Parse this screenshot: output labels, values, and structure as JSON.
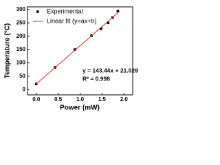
{
  "chart_data": {
    "type": "scatter",
    "xlabel": "Power (mW)",
    "ylabel": "Temperature (°C)",
    "series": [
      {
        "name": "Experimental",
        "type": "scatter",
        "color": "#000000",
        "x": [
          0,
          0.43,
          0.88,
          1.26,
          1.48,
          1.64,
          1.74,
          1.86
        ],
        "values": [
          21,
          83,
          150,
          202,
          228,
          250,
          270,
          294
        ]
      },
      {
        "name": "Linear fit (y=ax+b)",
        "type": "line",
        "color": "#e8262b",
        "x": [
          0,
          1.9
        ],
        "values": [
          21.03,
          293.57
        ]
      }
    ],
    "annotations": [
      "y = 143.44x + 21.029",
      "R² = 0.998"
    ],
    "xlim": [
      -0.2,
      2.2
    ],
    "xticks": [
      {
        "value": 0,
        "label": "0.0"
      },
      {
        "value": 0.5,
        "label": "0.5"
      },
      {
        "value": 1,
        "label": "1.0"
      },
      {
        "value": 1.5,
        "label": "1.5"
      },
      {
        "value": 2,
        "label": "2.0"
      }
    ],
    "ylim": [
      -20,
      310
    ],
    "yticks": [
      0,
      50,
      100,
      150,
      200,
      250,
      300
    ],
    "legend": "upper-left",
    "grid": false
  }
}
